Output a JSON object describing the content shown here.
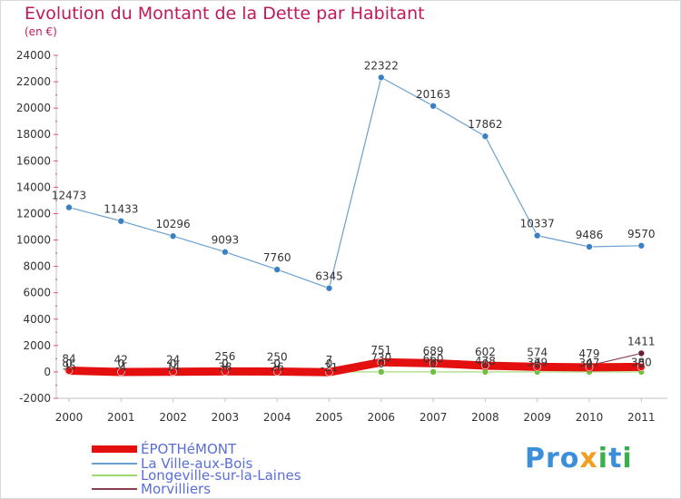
{
  "header": {
    "title": "Evolution du Montant de la Dette par Habitant",
    "subtitle": "(en €)"
  },
  "logo": {
    "text": "Proxiti",
    "colors": [
      "#3a8fd8",
      "#f0a020",
      "#3ab04a"
    ]
  },
  "chart_data": {
    "type": "line",
    "categories": [
      "2000",
      "2001",
      "2002",
      "2003",
      "2004",
      "2005",
      "2006",
      "2007",
      "2008",
      "2009",
      "2010",
      "2011"
    ],
    "ylim": [
      -2000,
      24000
    ],
    "yticks": [
      -2000,
      0,
      2000,
      4000,
      6000,
      8000,
      10000,
      12000,
      14000,
      16000,
      18000,
      20000,
      22000,
      24000
    ],
    "grid": false,
    "legend_position": "bottom-left",
    "series": [
      {
        "name": "La Ville-aux-Bois",
        "color": "#6a9fd0",
        "marker": "#3b7fc4",
        "line_width": 1.2,
        "values": [
          12473,
          11433,
          10296,
          9093,
          7760,
          6345,
          22322,
          20163,
          17862,
          10337,
          9486,
          9570
        ],
        "labels": [
          "12473",
          "11433",
          "10296",
          "9093",
          "7760",
          "6345",
          "22322",
          "20163",
          "17862",
          "10337",
          "9486",
          "9570"
        ]
      },
      {
        "name": "Longeville-sur-la-Laines",
        "color": "#9fd870",
        "marker": "#6fc040",
        "line_width": 1.2,
        "values": [
          0,
          0,
          0,
          0,
          0,
          0,
          0,
          0,
          0,
          0,
          0,
          0
        ],
        "labels": [
          "0",
          "0",
          "0",
          "0",
          "0",
          "0",
          "0",
          "0",
          "0",
          "0",
          "0",
          "0"
        ]
      },
      {
        "name": "Morvilliers",
        "color": "#8a4050",
        "marker": "#6a1f30",
        "line_width": 1.2,
        "values": [
          84,
          42,
          24,
          256,
          250,
          7,
          751,
          689,
          602,
          574,
          479,
          1411
        ],
        "labels": [
          "84",
          "42",
          "24",
          "256",
          "250",
          "7",
          "751",
          "689",
          "602",
          "574",
          "479",
          "1411"
        ]
      },
      {
        "name": "ÉPOTHéMONT",
        "color": "#e41010",
        "marker": "#e41010",
        "line_width": 9,
        "values": [
          95,
          -4,
          14,
          38,
          26,
          -21,
          730,
          660,
          478,
          379,
          347,
          380
        ],
        "labels": [
          "95",
          "-4",
          "14",
          "38",
          "26",
          "-21",
          "730",
          "660",
          "478",
          "379",
          "347",
          "380"
        ]
      }
    ]
  },
  "legend": [
    {
      "label": "ÉPOTHéMONT",
      "color": "#e41010"
    },
    {
      "label": "La Ville-aux-Bois",
      "color": "#6a9fd0"
    },
    {
      "label": "Longeville-sur-la-Laines",
      "color": "#9fd870"
    },
    {
      "label": "Morvilliers",
      "color": "#8a4050"
    }
  ]
}
